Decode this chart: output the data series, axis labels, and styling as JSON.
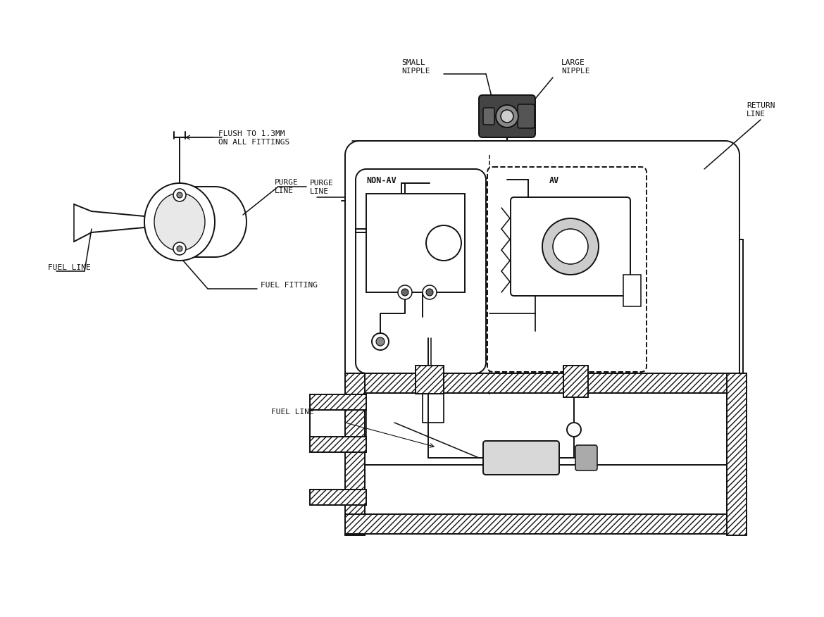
{
  "bg_color": "#ffffff",
  "line_color": "#111111",
  "labels": {
    "flush": "FLUSH TO 1.3MM\nON ALL FITTINGS",
    "purge_line": "PURGE\nLINE",
    "fuel_fitting": "FUEL FITTING",
    "fuel_line_left": "FUEL LINE",
    "small_nipple": "SMALL\nNIPPLE",
    "large_nipple": "LARGE\nNIPPLE",
    "return_line": "RETURN\nLINE",
    "non_av": "NON-AV",
    "av": "AV",
    "fuel_line_right": "FUEL LINE"
  },
  "figsize": [
    11.7,
    8.76
  ],
  "dpi": 100,
  "font_size": 8.5
}
